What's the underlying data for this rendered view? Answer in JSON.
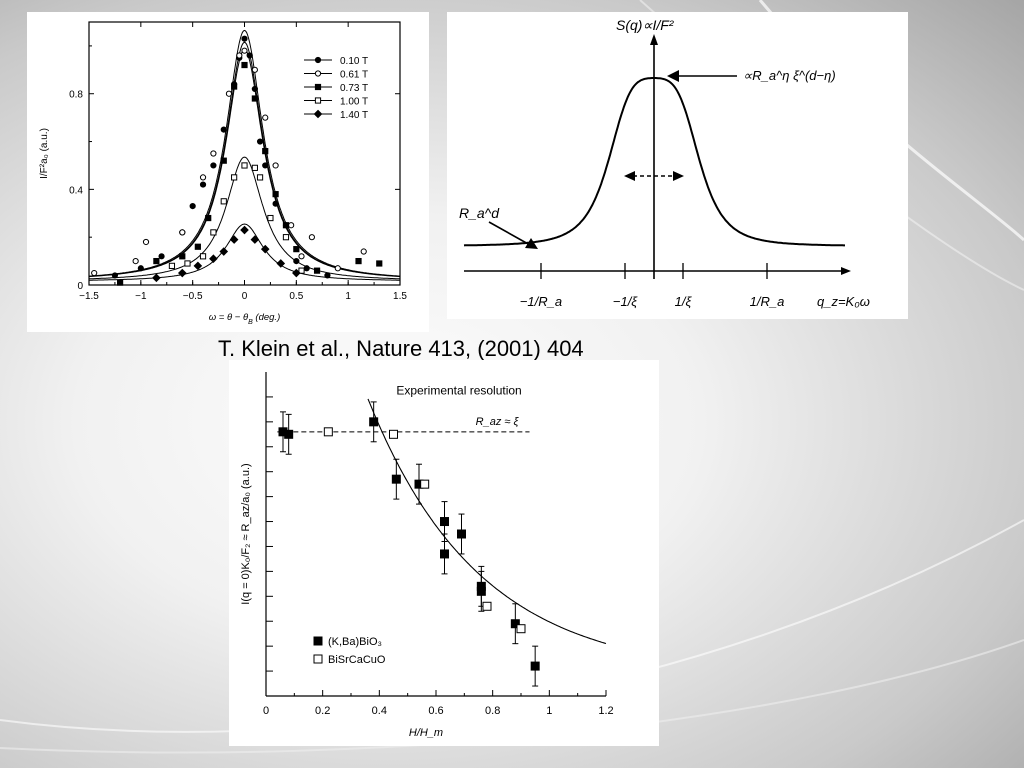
{
  "slide": {
    "citation": "T. Klein et al., Nature 413, (2001) 404"
  },
  "chart_data": [
    {
      "type": "scatter",
      "xlabel": "ω = θ − θ",
      "xlabel_sub": "B",
      "xlabel_tail": " (deg.)",
      "ylabel": "I/F²a₀ (a.u.)",
      "xlim": [
        -1.5,
        1.5
      ],
      "ylim": [
        0,
        1.1
      ],
      "xticks": [
        "−1.5",
        "−1",
        "−0.5",
        "0",
        "0.5",
        "1",
        "1.5"
      ],
      "xtick_values": [
        -1.5,
        -1,
        -0.5,
        0,
        0.5,
        1,
        1.5
      ],
      "yticks": [
        "0",
        "0.4",
        "0.8"
      ],
      "ytick_values": [
        0,
        0.4,
        0.8
      ],
      "series": [
        {
          "name": "0.10 T",
          "marker": "circle-filled",
          "peak": 1.05,
          "x": [
            -1.25,
            -1.0,
            -0.8,
            -0.6,
            -0.5,
            -0.4,
            -0.3,
            -0.2,
            -0.1,
            -0.05,
            0,
            0.05,
            0.1,
            0.15,
            0.2,
            0.3,
            0.4,
            0.5,
            0.6,
            0.8
          ],
          "y": [
            0.04,
            0.07,
            0.12,
            0.22,
            0.33,
            0.42,
            0.5,
            0.65,
            0.84,
            0.95,
            1.03,
            0.96,
            0.82,
            0.6,
            0.5,
            0.34,
            0.25,
            0.1,
            0.07,
            0.04
          ]
        },
        {
          "name": "0.61 T",
          "marker": "circle-open",
          "peak": 1.0,
          "x": [
            -1.45,
            -1.05,
            -0.95,
            -0.6,
            -0.4,
            -0.3,
            -0.15,
            -0.05,
            0,
            0.1,
            0.2,
            0.3,
            0.45,
            0.55,
            0.65,
            0.9,
            1.15
          ],
          "y": [
            0.05,
            0.1,
            0.18,
            0.22,
            0.45,
            0.55,
            0.8,
            0.96,
            0.98,
            0.9,
            0.7,
            0.5,
            0.25,
            0.12,
            0.2,
            0.07,
            0.14
          ]
        },
        {
          "name": "0.73 T",
          "marker": "square-filled",
          "peak": 0.97,
          "x": [
            -1.2,
            -0.85,
            -0.6,
            -0.45,
            -0.35,
            -0.2,
            -0.1,
            0,
            0.1,
            0.2,
            0.3,
            0.4,
            0.5,
            0.7,
            1.1,
            1.3
          ],
          "y": [
            0.01,
            0.1,
            0.12,
            0.16,
            0.28,
            0.52,
            0.83,
            0.92,
            0.78,
            0.56,
            0.38,
            0.25,
            0.15,
            0.06,
            0.1,
            0.09
          ]
        },
        {
          "name": "1.00 T",
          "marker": "square-open",
          "peak": 0.52,
          "x": [
            -0.7,
            -0.55,
            -0.4,
            -0.3,
            -0.2,
            -0.1,
            0,
            0.1,
            0.15,
            0.25,
            0.4,
            0.55
          ],
          "y": [
            0.08,
            0.09,
            0.12,
            0.22,
            0.35,
            0.45,
            0.5,
            0.49,
            0.45,
            0.28,
            0.2,
            0.06
          ]
        },
        {
          "name": "1.40 T",
          "marker": "diamond-filled",
          "peak": 0.24,
          "x": [
            -0.85,
            -0.6,
            -0.45,
            -0.3,
            -0.2,
            -0.1,
            0,
            0.1,
            0.2,
            0.35,
            0.5
          ],
          "y": [
            0.03,
            0.05,
            0.08,
            0.11,
            0.14,
            0.19,
            0.23,
            0.19,
            0.15,
            0.09,
            0.05
          ]
        }
      ]
    },
    {
      "type": "line",
      "title": "S(q)∝I/F²",
      "xlabel": "q_z=K₀ω",
      "ticks": [
        "−1/R_a",
        "−1/ξ",
        "1/ξ",
        "1/R_a"
      ],
      "tick_positions": [
        -0.6,
        -0.15,
        0.15,
        0.6
      ],
      "xlim": [
        -1,
        1
      ],
      "curve": {
        "center": 0,
        "baseline": 0.08,
        "peak": 1.0,
        "halfwidth": 0.15
      },
      "annotations": [
        {
          "text": "∝R_a^η ξ^(d−η)",
          "points_to": "peak"
        },
        {
          "text": "R_a^d",
          "points_to": "tail"
        }
      ]
    },
    {
      "type": "scatter",
      "xlabel": "H/H_m",
      "ylabel": "I(q = 0)K₀/F₂ ≈ R_az/a₀ (a.u.)",
      "xlim": [
        0,
        1.2
      ],
      "ylim": [
        0,
        1.3
      ],
      "xticks": [
        "0",
        "0.2",
        "0.4",
        "0.6",
        "0.8",
        "1",
        "1.2"
      ],
      "xtick_values": [
        0,
        0.2,
        0.4,
        0.6,
        0.8,
        1,
        1.2
      ],
      "annotations": [
        "Experimental resolution",
        "R_az ≈ ξ"
      ],
      "resolution_level": 1.06,
      "series": [
        {
          "name": "(K,Ba)BiO₃",
          "marker": "square-filled",
          "x": [
            0.06,
            0.08,
            0.38,
            0.46,
            0.54,
            0.63,
            0.63,
            0.69,
            0.76,
            0.76,
            0.88,
            0.95
          ],
          "y": [
            1.06,
            1.05,
            1.1,
            0.87,
            0.85,
            0.7,
            0.57,
            0.65,
            0.44,
            0.42,
            0.29,
            0.12
          ],
          "err": [
            0.08,
            0.08,
            0.08,
            0.08,
            0.08,
            0.08,
            0.08,
            0.08,
            0.08,
            0.08,
            0.08,
            0.08
          ]
        },
        {
          "name": "BiSrCaCuO",
          "marker": "square-open",
          "x": [
            0.22,
            0.45,
            0.56,
            0.78,
            0.9
          ],
          "y": [
            1.06,
            1.05,
            0.85,
            0.36,
            0.27
          ]
        }
      ],
      "fit_curve": {
        "type": "model",
        "description": "monotonic decreasing fit through data"
      }
    }
  ]
}
